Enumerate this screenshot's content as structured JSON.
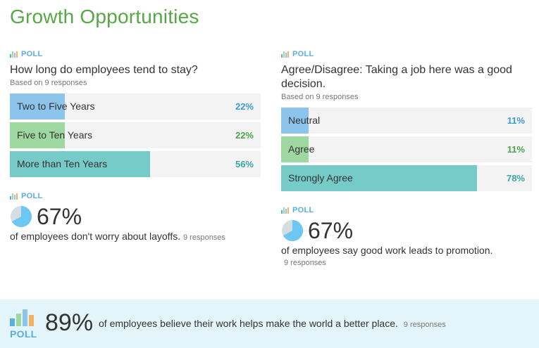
{
  "section_title": "Growth Opportunities",
  "poll_label": "POLL",
  "colors": {
    "title_green": "#56a746",
    "poll_blue": "#5aaedc",
    "bar_blue": "#8cc4ec",
    "bar_green": "#9ed8a0",
    "bar_teal": "#76cbc9",
    "pct_blue": "#3a9bd6",
    "pct_green": "#4ea44b",
    "pct_teal": "#35a8a6"
  },
  "poll1": {
    "question": "How long do employees tend to stay?",
    "based": "Based on 9 responses",
    "options": [
      {
        "label": "Two to Five Years",
        "pct": "22%",
        "value": 0.22,
        "fill": "#8cc4ec",
        "pct_color": "#3a9bd6"
      },
      {
        "label": "Five to Ten Years",
        "pct": "22%",
        "value": 0.22,
        "fill": "#9ed8a0",
        "pct_color": "#4ea44b"
      },
      {
        "label": "More than Ten Years",
        "pct": "56%",
        "value": 0.56,
        "fill": "#76cbc9",
        "pct_color": "#35a8a6"
      }
    ]
  },
  "poll2": {
    "question": "Agree/Disagree: Taking a job here was a good decision.",
    "based": "Based on 9 responses",
    "options": [
      {
        "label": "Neutral",
        "pct": "11%",
        "value": 0.11,
        "fill": "#8cc4ec",
        "pct_color": "#3a9bd6"
      },
      {
        "label": "Agree",
        "pct": "11%",
        "value": 0.11,
        "fill": "#9ed8a0",
        "pct_color": "#4ea44b"
      },
      {
        "label": "Strongly Agree",
        "pct": "78%",
        "value": 0.78,
        "fill": "#76cbc9",
        "pct_color": "#35a8a6"
      }
    ]
  },
  "stat1": {
    "pct": "67%",
    "value": 0.67,
    "text": "of employees don't worry about layoffs.",
    "responses": "9 responses"
  },
  "stat2": {
    "pct": "67%",
    "value": 0.67,
    "text": "of employees say good work leads to promotion.",
    "responses": "9 responses"
  },
  "banner": {
    "pct": "89%",
    "text": "of employees believe their work helps make the world a better place.",
    "responses": "9 responses"
  }
}
